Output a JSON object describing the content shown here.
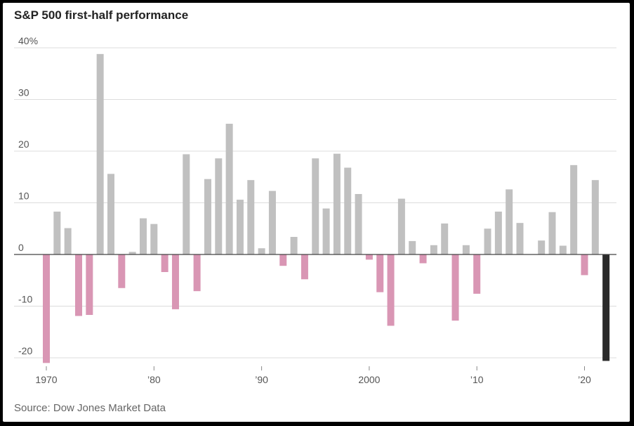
{
  "title": "S&P 500 first-half performance",
  "source": "Source: Dow Jones Market Data",
  "colors": {
    "positive": "#c0c0c0",
    "negative": "#d996b4",
    "highlight": "#2a2a2a",
    "grid": "#dcdcdc",
    "zero_line": "#444444"
  },
  "chart_data": {
    "type": "bar",
    "title": "S&P 500 first-half performance",
    "xlabel": "",
    "ylabel": "",
    "ylim": [
      -22,
      40
    ],
    "grid": true,
    "legend": "none",
    "y_ticks": [
      {
        "value": 40,
        "label": "40%"
      },
      {
        "value": 30,
        "label": "30"
      },
      {
        "value": 20,
        "label": "20"
      },
      {
        "value": 10,
        "label": "10"
      },
      {
        "value": 0,
        "label": "0"
      },
      {
        "value": -10,
        "label": "-10"
      },
      {
        "value": -20,
        "label": "-20"
      }
    ],
    "x_ticks": [
      {
        "value": 1970,
        "label": "1970"
      },
      {
        "value": 1980,
        "label": "’80"
      },
      {
        "value": 1990,
        "label": "’90"
      },
      {
        "value": 2000,
        "label": "2000"
      },
      {
        "value": 2010,
        "label": "’10"
      },
      {
        "value": 2020,
        "label": "’20"
      }
    ],
    "categories": [
      1970,
      1971,
      1972,
      1973,
      1974,
      1975,
      1976,
      1977,
      1978,
      1979,
      1980,
      1981,
      1982,
      1983,
      1984,
      1985,
      1986,
      1987,
      1988,
      1989,
      1990,
      1991,
      1992,
      1993,
      1994,
      1995,
      1996,
      1997,
      1998,
      1999,
      2000,
      2001,
      2002,
      2003,
      2004,
      2005,
      2006,
      2007,
      2008,
      2009,
      2010,
      2011,
      2012,
      2013,
      2014,
      2015,
      2016,
      2017,
      2018,
      2019,
      2020,
      2021,
      2022
    ],
    "values": [
      -21.0,
      8.3,
      5.1,
      -11.9,
      -11.7,
      38.8,
      15.6,
      -6.5,
      0.5,
      7.0,
      5.9,
      -3.4,
      -10.6,
      19.4,
      -7.1,
      14.6,
      18.6,
      25.3,
      10.6,
      14.4,
      1.2,
      12.3,
      -2.2,
      3.4,
      -4.8,
      18.6,
      8.9,
      19.5,
      16.8,
      11.7,
      -1.0,
      -7.3,
      -13.8,
      10.8,
      2.6,
      -1.7,
      1.8,
      6.0,
      -12.8,
      1.8,
      -7.6,
      5.0,
      8.3,
      12.6,
      6.1,
      0.0,
      2.7,
      8.2,
      1.7,
      17.3,
      -4.0,
      14.4,
      -20.6
    ],
    "highlight_index": 52
  }
}
